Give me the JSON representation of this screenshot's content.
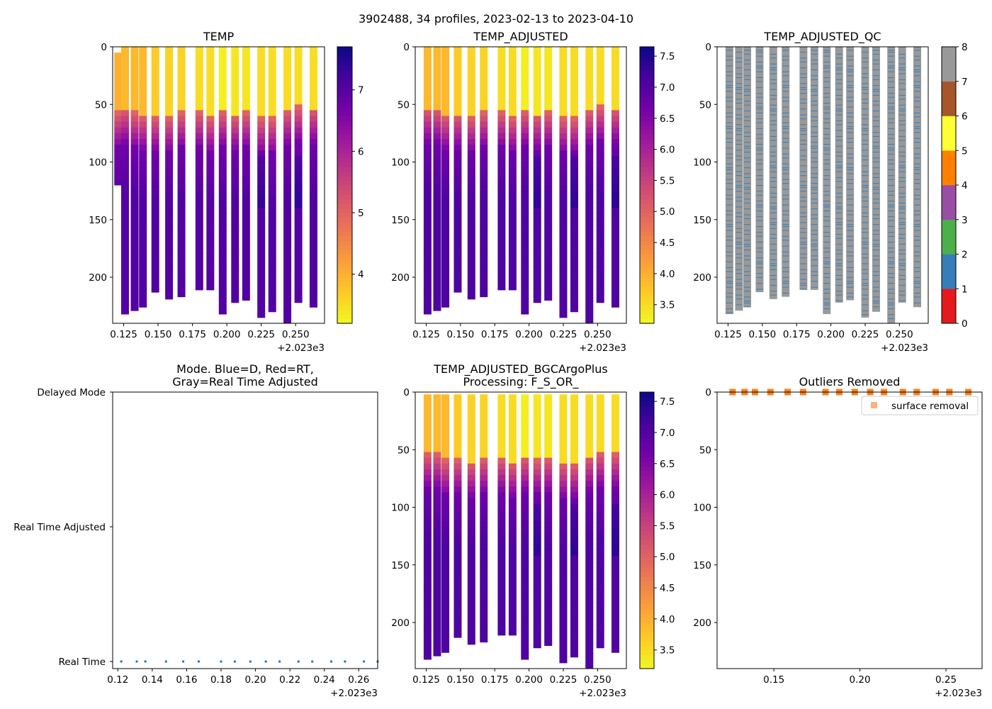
{
  "figure": {
    "suptitle": "3902488, 34 profiles, 2023-02-13 to 2023-04-10"
  },
  "colors": {
    "plasma": [
      "#0d0887",
      "#46039f",
      "#7201a8",
      "#9c179e",
      "#bd3786",
      "#d8576b",
      "#ed7953",
      "#fb9f3a",
      "#fdca26",
      "#f0f921"
    ],
    "qc": [
      "#e41a1c",
      "#377eb8",
      "#4daf4a",
      "#984ea3",
      "#ff7f00",
      "#ffff33",
      "#a65628",
      "#f781bf",
      "#999999"
    ],
    "mode_point": "#1f77b4",
    "outlier_fill": "#f7b283",
    "outlier_edge": "#f4801f"
  },
  "chart_data": [
    {
      "id": "temp",
      "type": "heatmap",
      "title": "TEMP",
      "x_offset_label": "+2.023e3",
      "xlim": [
        0.117,
        0.271
      ],
      "ylim": [
        240,
        0
      ],
      "x_ticks": [
        "0.125",
        "0.150",
        "0.175",
        "0.200",
        "0.225",
        "0.250"
      ],
      "y_ticks": [
        "0",
        "50",
        "100",
        "150",
        "200"
      ],
      "colorbar": {
        "range": [
          3.2,
          7.7
        ],
        "ticks": [
          "4",
          "5",
          "6",
          "7"
        ]
      },
      "profiles": [
        {
          "x": 0.121,
          "max_depth": 120,
          "thermocline": 62,
          "surface_temp": 4.0,
          "start_depth": 5
        },
        {
          "x": 0.126,
          "max_depth": 232,
          "thermocline": 58,
          "surface_temp": 3.9,
          "start_depth": 0
        },
        {
          "x": 0.133,
          "max_depth": 229,
          "thermocline": 62,
          "surface_temp": 3.9,
          "start_depth": 0
        },
        {
          "x": 0.139,
          "max_depth": 226,
          "thermocline": 64,
          "surface_temp": 3.9,
          "start_depth": 0
        },
        {
          "x": 0.148,
          "max_depth": 213,
          "thermocline": 65,
          "surface_temp": 3.7,
          "start_depth": 0
        },
        {
          "x": 0.158,
          "max_depth": 219,
          "thermocline": 66,
          "surface_temp": 3.6,
          "start_depth": 0
        },
        {
          "x": 0.167,
          "max_depth": 217,
          "thermocline": 62,
          "surface_temp": 3.6,
          "start_depth": 0
        },
        {
          "x": 0.18,
          "max_depth": 211,
          "thermocline": 62,
          "surface_temp": 3.5,
          "start_depth": 0
        },
        {
          "x": 0.188,
          "max_depth": 211,
          "thermocline": 66,
          "surface_temp": 3.5,
          "start_depth": 0
        },
        {
          "x": 0.197,
          "max_depth": 232,
          "thermocline": 61,
          "surface_temp": 3.3,
          "start_depth": 0
        },
        {
          "x": 0.206,
          "max_depth": 222,
          "thermocline": 64,
          "surface_temp": 3.4,
          "start_depth": 0
        },
        {
          "x": 0.214,
          "max_depth": 220,
          "thermocline": 62,
          "surface_temp": 3.4,
          "start_depth": 0
        },
        {
          "x": 0.225,
          "max_depth": 235,
          "thermocline": 67,
          "surface_temp": 3.5,
          "start_depth": 0
        },
        {
          "x": 0.233,
          "max_depth": 230,
          "thermocline": 67,
          "surface_temp": 3.5,
          "start_depth": 0
        },
        {
          "x": 0.244,
          "max_depth": 240,
          "thermocline": 60,
          "surface_temp": 3.5,
          "start_depth": 0
        },
        {
          "x": 0.252,
          "max_depth": 222,
          "thermocline": 57,
          "surface_temp": 3.5,
          "start_depth": 0
        },
        {
          "x": 0.263,
          "max_depth": 226,
          "thermocline": 58,
          "surface_temp": 3.5,
          "start_depth": 0
        }
      ]
    },
    {
      "id": "temp_adj",
      "type": "heatmap",
      "title": "TEMP_ADJUSTED",
      "x_offset_label": "+2.023e3",
      "xlim": [
        0.117,
        0.271
      ],
      "ylim": [
        240,
        0
      ],
      "x_ticks": [
        "0.125",
        "0.150",
        "0.175",
        "0.200",
        "0.225",
        "0.250"
      ],
      "y_ticks": [
        "0",
        "50",
        "100",
        "150",
        "200"
      ],
      "colorbar": {
        "range": [
          3.2,
          7.65
        ],
        "ticks": [
          "3.5",
          "4.0",
          "4.5",
          "5.0",
          "5.5",
          "6.0",
          "6.5",
          "7.0",
          "7.5"
        ]
      },
      "profiles": [
        {
          "x": 0.126,
          "max_depth": 232,
          "thermocline": 58,
          "surface_temp": 3.9,
          "start_depth": 0
        },
        {
          "x": 0.133,
          "max_depth": 229,
          "thermocline": 58,
          "surface_temp": 3.9,
          "start_depth": 0
        },
        {
          "x": 0.139,
          "max_depth": 226,
          "thermocline": 64,
          "surface_temp": 3.9,
          "start_depth": 0
        },
        {
          "x": 0.148,
          "max_depth": 213,
          "thermocline": 63,
          "surface_temp": 3.7,
          "start_depth": 0
        },
        {
          "x": 0.158,
          "max_depth": 219,
          "thermocline": 66,
          "surface_temp": 3.6,
          "start_depth": 0
        },
        {
          "x": 0.167,
          "max_depth": 217,
          "thermocline": 62,
          "surface_temp": 3.6,
          "start_depth": 0
        },
        {
          "x": 0.18,
          "max_depth": 211,
          "thermocline": 62,
          "surface_temp": 3.5,
          "start_depth": 0
        },
        {
          "x": 0.188,
          "max_depth": 211,
          "thermocline": 66,
          "surface_temp": 3.5,
          "start_depth": 0
        },
        {
          "x": 0.197,
          "max_depth": 232,
          "thermocline": 61,
          "surface_temp": 3.3,
          "start_depth": 0
        },
        {
          "x": 0.206,
          "max_depth": 222,
          "thermocline": 64,
          "surface_temp": 3.4,
          "start_depth": 0
        },
        {
          "x": 0.214,
          "max_depth": 220,
          "thermocline": 62,
          "surface_temp": 3.4,
          "start_depth": 0
        },
        {
          "x": 0.225,
          "max_depth": 235,
          "thermocline": 67,
          "surface_temp": 3.5,
          "start_depth": 0
        },
        {
          "x": 0.233,
          "max_depth": 230,
          "thermocline": 67,
          "surface_temp": 3.5,
          "start_depth": 0
        },
        {
          "x": 0.244,
          "max_depth": 240,
          "thermocline": 60,
          "surface_temp": 3.5,
          "start_depth": 0
        },
        {
          "x": 0.252,
          "max_depth": 222,
          "thermocline": 57,
          "surface_temp": 3.5,
          "start_depth": 0
        },
        {
          "x": 0.263,
          "max_depth": 226,
          "thermocline": 58,
          "surface_temp": 3.5,
          "start_depth": 0
        }
      ]
    },
    {
      "id": "temp_qc",
      "type": "heatmap",
      "title": "TEMP_ADJUSTED_QC",
      "x_offset_label": "+2.023e3",
      "xlim": [
        0.117,
        0.271
      ],
      "ylim": [
        240,
        0
      ],
      "x_ticks": [
        "0.125",
        "0.150",
        "0.175",
        "0.200",
        "0.225",
        "0.250"
      ],
      "y_ticks": [
        "0",
        "50",
        "100",
        "150",
        "200"
      ],
      "colorbar": {
        "range": [
          0,
          8
        ],
        "ticks": [
          "0",
          "1",
          "2",
          "3",
          "4",
          "5",
          "6",
          "7",
          "8"
        ]
      },
      "dominant_flag": 8,
      "minor_flag": 1,
      "profiles": [
        {
          "x": 0.126,
          "max_depth": 232
        },
        {
          "x": 0.133,
          "max_depth": 229
        },
        {
          "x": 0.139,
          "max_depth": 226
        },
        {
          "x": 0.148,
          "max_depth": 213
        },
        {
          "x": 0.158,
          "max_depth": 219
        },
        {
          "x": 0.167,
          "max_depth": 217
        },
        {
          "x": 0.18,
          "max_depth": 211
        },
        {
          "x": 0.188,
          "max_depth": 211
        },
        {
          "x": 0.197,
          "max_depth": 232
        },
        {
          "x": 0.206,
          "max_depth": 222
        },
        {
          "x": 0.214,
          "max_depth": 220
        },
        {
          "x": 0.225,
          "max_depth": 235
        },
        {
          "x": 0.233,
          "max_depth": 230
        },
        {
          "x": 0.244,
          "max_depth": 240
        },
        {
          "x": 0.252,
          "max_depth": 222
        },
        {
          "x": 0.263,
          "max_depth": 226
        }
      ]
    },
    {
      "id": "mode",
      "type": "scatter",
      "title_lines": [
        "Mode. Blue=D, Red=RT,",
        "Gray=Real Time Adjusted"
      ],
      "x_offset_label": "+2.023e3",
      "xlim": [
        0.117,
        0.271
      ],
      "x_ticks": [
        "0.12",
        "0.14",
        "0.16",
        "0.18",
        "0.20",
        "0.22",
        "0.24",
        "0.26"
      ],
      "y_categories": [
        "Delayed Mode",
        "Real Time Adjusted",
        "Real Time"
      ],
      "points": [
        {
          "x": 0.122,
          "mode": "Real Time"
        },
        {
          "x": 0.131,
          "mode": "Real Time"
        },
        {
          "x": 0.136,
          "mode": "Real Time"
        },
        {
          "x": 0.148,
          "mode": "Real Time"
        },
        {
          "x": 0.158,
          "mode": "Real Time"
        },
        {
          "x": 0.167,
          "mode": "Real Time"
        },
        {
          "x": 0.18,
          "mode": "Real Time"
        },
        {
          "x": 0.188,
          "mode": "Real Time"
        },
        {
          "x": 0.197,
          "mode": "Real Time"
        },
        {
          "x": 0.206,
          "mode": "Real Time"
        },
        {
          "x": 0.214,
          "mode": "Real Time"
        },
        {
          "x": 0.225,
          "mode": "Real Time"
        },
        {
          "x": 0.233,
          "mode": "Real Time"
        },
        {
          "x": 0.244,
          "mode": "Real Time"
        },
        {
          "x": 0.252,
          "mode": "Real Time"
        },
        {
          "x": 0.263,
          "mode": "Real Time"
        },
        {
          "x": 0.271,
          "mode": "Real Time"
        }
      ]
    },
    {
      "id": "temp_bgc",
      "type": "heatmap",
      "title_lines": [
        "TEMP_ADJUSTED_BGCArgoPlus",
        "Processing: F_S_OR_"
      ],
      "x_offset_label": "+2.023e3",
      "xlim": [
        0.117,
        0.271
      ],
      "ylim": [
        240,
        0
      ],
      "x_ticks": [
        "0.125",
        "0.150",
        "0.175",
        "0.200",
        "0.225",
        "0.250"
      ],
      "y_ticks": [
        "0",
        "50",
        "100",
        "150",
        "200"
      ],
      "colorbar": {
        "range": [
          3.2,
          7.65
        ],
        "ticks": [
          "3.5",
          "4.0",
          "4.5",
          "5.0",
          "5.5",
          "6.0",
          "6.5",
          "7.0",
          "7.5"
        ]
      },
      "profiles": [
        {
          "x": 0.126,
          "max_depth": 232,
          "thermocline": 58,
          "surface_temp": 3.9,
          "start_depth": 2
        },
        {
          "x": 0.133,
          "max_depth": 229,
          "thermocline": 58,
          "surface_temp": 3.9,
          "start_depth": 2
        },
        {
          "x": 0.139,
          "max_depth": 226,
          "thermocline": 64,
          "surface_temp": 3.9,
          "start_depth": 2
        },
        {
          "x": 0.148,
          "max_depth": 213,
          "thermocline": 63,
          "surface_temp": 3.7,
          "start_depth": 2
        },
        {
          "x": 0.158,
          "max_depth": 219,
          "thermocline": 66,
          "surface_temp": 3.6,
          "start_depth": 2
        },
        {
          "x": 0.167,
          "max_depth": 217,
          "thermocline": 62,
          "surface_temp": 3.6,
          "start_depth": 2
        },
        {
          "x": 0.18,
          "max_depth": 211,
          "thermocline": 62,
          "surface_temp": 3.5,
          "start_depth": 2
        },
        {
          "x": 0.188,
          "max_depth": 211,
          "thermocline": 66,
          "surface_temp": 3.5,
          "start_depth": 2
        },
        {
          "x": 0.197,
          "max_depth": 232,
          "thermocline": 61,
          "surface_temp": 3.3,
          "start_depth": 2
        },
        {
          "x": 0.206,
          "max_depth": 222,
          "thermocline": 64,
          "surface_temp": 3.4,
          "start_depth": 2
        },
        {
          "x": 0.214,
          "max_depth": 220,
          "thermocline": 62,
          "surface_temp": 3.4,
          "start_depth": 2
        },
        {
          "x": 0.225,
          "max_depth": 235,
          "thermocline": 67,
          "surface_temp": 3.5,
          "start_depth": 2
        },
        {
          "x": 0.233,
          "max_depth": 230,
          "thermocline": 67,
          "surface_temp": 3.5,
          "start_depth": 2
        },
        {
          "x": 0.244,
          "max_depth": 240,
          "thermocline": 60,
          "surface_temp": 3.5,
          "start_depth": 2
        },
        {
          "x": 0.252,
          "max_depth": 222,
          "thermocline": 57,
          "surface_temp": 3.5,
          "start_depth": 2
        },
        {
          "x": 0.263,
          "max_depth": 226,
          "thermocline": 58,
          "surface_temp": 3.5,
          "start_depth": 2
        }
      ]
    },
    {
      "id": "outliers",
      "type": "scatter",
      "title": "Outliers Removed",
      "x_offset_label": "+2.023e3",
      "xlim": [
        0.117,
        0.271
      ],
      "ylim": [
        240,
        0
      ],
      "x_ticks": [
        "0.15",
        "0.20",
        "0.25"
      ],
      "y_ticks": [
        "0",
        "50",
        "100",
        "150",
        "200"
      ],
      "legend": {
        "label": "surface removal",
        "placement": "top-right"
      },
      "points": [
        {
          "x": 0.126,
          "y": 0
        },
        {
          "x": 0.133,
          "y": 0
        },
        {
          "x": 0.139,
          "y": 0
        },
        {
          "x": 0.148,
          "y": 0
        },
        {
          "x": 0.158,
          "y": 0
        },
        {
          "x": 0.167,
          "y": 0
        },
        {
          "x": 0.18,
          "y": 0
        },
        {
          "x": 0.188,
          "y": 0
        },
        {
          "x": 0.197,
          "y": 0
        },
        {
          "x": 0.206,
          "y": 0
        },
        {
          "x": 0.214,
          "y": 0
        },
        {
          "x": 0.225,
          "y": 0
        },
        {
          "x": 0.233,
          "y": 0
        },
        {
          "x": 0.244,
          "y": 0
        },
        {
          "x": 0.252,
          "y": 0
        },
        {
          "x": 0.263,
          "y": 0
        }
      ]
    }
  ]
}
